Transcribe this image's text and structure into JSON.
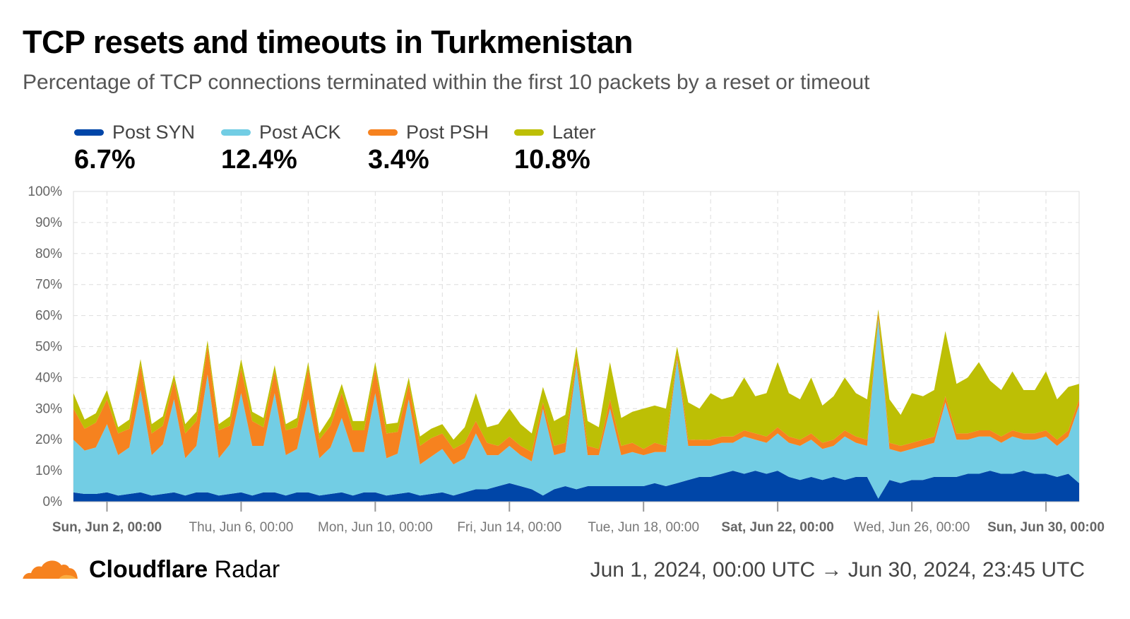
{
  "header": {
    "title": "TCP resets and timeouts in Turkmenistan",
    "subtitle": "Percentage of TCP connections terminated within the first 10 packets by a reset or timeout"
  },
  "legend": [
    {
      "name": "Post SYN",
      "value": "6.7%",
      "color": "#0046a8"
    },
    {
      "name": "Post ACK",
      "value": "12.4%",
      "color": "#72cde4"
    },
    {
      "name": "Post PSH",
      "value": "3.4%",
      "color": "#f6821f"
    },
    {
      "name": "Later",
      "value": "10.8%",
      "color": "#bdbf05"
    }
  ],
  "footer": {
    "brand_bold": "Cloudflare",
    "brand_rest": " Radar",
    "range": "Jun 1, 2024, 00:00 UTC → Jun 30, 2024, 23:45 UTC"
  },
  "chart_data": {
    "type": "area",
    "stacked": true,
    "grid": true,
    "ylim": [
      0,
      100
    ],
    "yticks": [
      "0%",
      "10%",
      "20%",
      "30%",
      "40%",
      "50%",
      "60%",
      "70%",
      "80%",
      "90%",
      "100%"
    ],
    "xlim": [
      "2024-06-01T00:00",
      "2024-06-30T23:45"
    ],
    "xticks": [
      {
        "label": "Sun, Jun 2, 00:00",
        "at": "2024-06-02T00:00",
        "bold": true
      },
      {
        "label": "Thu, Jun 6, 00:00",
        "at": "2024-06-06T00:00",
        "bold": false
      },
      {
        "label": "Mon, Jun 10, 00:00",
        "at": "2024-06-10T00:00",
        "bold": false
      },
      {
        "label": "Fri, Jun 14, 00:00",
        "at": "2024-06-14T00:00",
        "bold": false
      },
      {
        "label": "Tue, Jun 18, 00:00",
        "at": "2024-06-18T00:00",
        "bold": false
      },
      {
        "label": "Sat, Jun 22, 00:00",
        "at": "2024-06-22T00:00",
        "bold": true
      },
      {
        "label": "Wed, Jun 26, 00:00",
        "at": "2024-06-26T00:00",
        "bold": false
      },
      {
        "label": "Sun, Jun 30, 00:00",
        "at": "2024-06-30T00:00",
        "bold": true
      }
    ],
    "x_start": "2024-06-01T00:00",
    "x_step_hours": 8,
    "series": [
      {
        "name": "Post SYN",
        "color": "#0046a8",
        "values": [
          3,
          2.5,
          2.5,
          3,
          2,
          2.5,
          3,
          2,
          2.5,
          3,
          2,
          3,
          3,
          2,
          2.5,
          3,
          2,
          3,
          3,
          2,
          3,
          3,
          2,
          2.5,
          3,
          2,
          3,
          3,
          2,
          2.5,
          3,
          2,
          2.5,
          3,
          2,
          3,
          4,
          4,
          5,
          6,
          5,
          4,
          2,
          4,
          5,
          4,
          5,
          5,
          5,
          5,
          5,
          5,
          6,
          5,
          6,
          7,
          8,
          8,
          9,
          10,
          9,
          10,
          9,
          10,
          8,
          7,
          8,
          7,
          8,
          7,
          8,
          8,
          1,
          7,
          6,
          7,
          7,
          8,
          8,
          8,
          9,
          9,
          10,
          9,
          9,
          10,
          9,
          9,
          8,
          9,
          6
        ]
      },
      {
        "name": "Post ACK",
        "color": "#72cde4",
        "values": [
          17,
          14,
          15,
          22,
          13,
          15,
          33,
          13,
          16,
          30,
          12,
          15,
          38,
          12,
          16,
          32,
          16,
          15,
          32,
          13,
          14,
          30,
          12,
          15,
          24,
          14,
          13,
          32,
          12,
          13,
          30,
          10,
          12,
          14,
          10,
          11,
          18,
          11,
          10,
          12,
          10,
          9,
          28,
          11,
          11,
          40,
          10,
          10,
          25,
          10,
          11,
          10,
          10,
          11,
          40,
          11,
          10,
          10,
          10,
          9,
          12,
          10,
          10,
          12,
          11,
          11,
          12,
          10,
          10,
          14,
          11,
          10,
          58,
          10,
          10,
          10,
          11,
          11,
          24,
          12,
          11,
          12,
          11,
          10,
          12,
          10,
          11,
          12,
          10,
          12,
          25
        ]
      },
      {
        "name": "Post PSH",
        "color": "#f6821f",
        "values": [
          10,
          7,
          8,
          8,
          7,
          6,
          8,
          7,
          6,
          6,
          8,
          8,
          9,
          9,
          6,
          8,
          8,
          6,
          7,
          8,
          7,
          10,
          6,
          7,
          8,
          7,
          7,
          8,
          8,
          7,
          5,
          6,
          6,
          5,
          5,
          5,
          4,
          4,
          3,
          3,
          3,
          3,
          2,
          3,
          3,
          3,
          3,
          2,
          3,
          3,
          3,
          2,
          3,
          2,
          2,
          2,
          2,
          2,
          2,
          2,
          2,
          2,
          2,
          2,
          2,
          2,
          2,
          2,
          2,
          2,
          2,
          2,
          2,
          2,
          2,
          2,
          2,
          2,
          2,
          2,
          2,
          2,
          2,
          2,
          2,
          2,
          2,
          2,
          2,
          2,
          2
        ]
      },
      {
        "name": "Later",
        "color": "#bdbf05",
        "values": [
          5,
          3,
          3,
          3,
          2,
          3,
          2,
          3,
          3,
          2,
          3,
          3,
          2,
          2,
          3,
          3,
          3,
          3,
          2,
          2,
          3,
          2,
          2,
          3,
          3,
          3,
          3,
          2,
          3,
          3,
          2,
          3,
          3,
          3,
          3,
          5,
          9,
          5,
          7,
          9,
          7,
          6,
          5,
          8,
          9,
          3,
          8,
          7,
          12,
          9,
          10,
          13,
          12,
          12,
          2,
          12,
          10,
          15,
          12,
          13,
          17,
          12,
          14,
          21,
          14,
          13,
          18,
          12,
          14,
          17,
          14,
          13,
          1,
          14,
          10,
          16,
          14,
          15,
          21,
          16,
          18,
          22,
          16,
          15,
          19,
          14,
          14,
          19,
          13,
          14,
          5
        ]
      }
    ]
  }
}
